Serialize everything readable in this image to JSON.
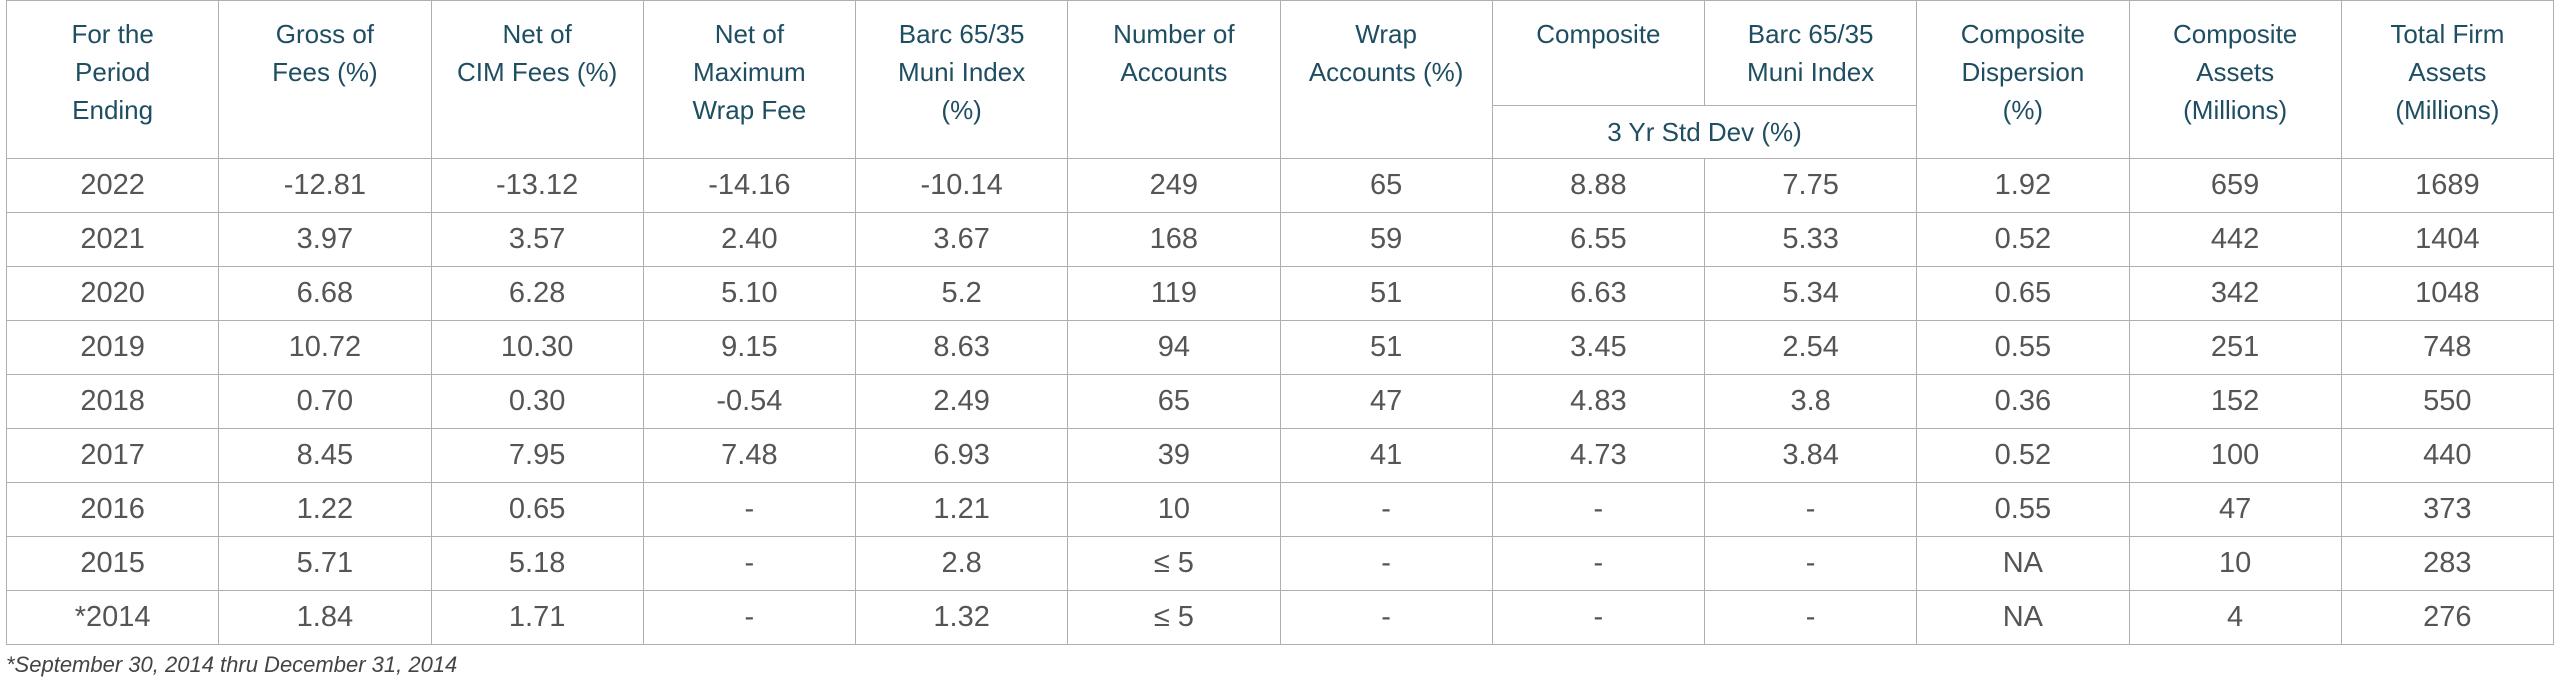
{
  "table": {
    "columns": [
      [
        "For the",
        "Period",
        "Ending"
      ],
      [
        "Gross of",
        "Fees (%)"
      ],
      [
        "Net of",
        "CIM Fees (%)"
      ],
      [
        "Net of",
        "Maximum",
        "Wrap Fee"
      ],
      [
        "Barc 65/35",
        "Muni Index",
        "(%)"
      ],
      [
        "Number of",
        "Accounts"
      ],
      [
        "Wrap",
        "Accounts (%)"
      ],
      [
        "Composite"
      ],
      [
        "Barc 65/35",
        "Muni Index"
      ],
      [
        "Composite",
        "Dispersion",
        "(%)"
      ],
      [
        "Composite",
        "Assets",
        "(Millions)"
      ],
      [
        "Total Firm",
        "Assets",
        "(Millions)"
      ]
    ],
    "subheader": "3 Yr Std Dev (%)",
    "rows": [
      [
        "2022",
        "-12.81",
        "-13.12",
        "-14.16",
        "-10.14",
        "249",
        "65",
        "8.88",
        "7.75",
        "1.92",
        "659",
        "1689"
      ],
      [
        "2021",
        "3.97",
        "3.57",
        "2.40",
        "3.67",
        "168",
        "59",
        "6.55",
        "5.33",
        "0.52",
        "442",
        "1404"
      ],
      [
        "2020",
        "6.68",
        "6.28",
        "5.10",
        "5.2",
        "119",
        "51",
        "6.63",
        "5.34",
        "0.65",
        "342",
        "1048"
      ],
      [
        "2019",
        "10.72",
        "10.30",
        "9.15",
        "8.63",
        "94",
        "51",
        "3.45",
        "2.54",
        "0.55",
        "251",
        "748"
      ],
      [
        "2018",
        "0.70",
        "0.30",
        "-0.54",
        "2.49",
        "65",
        "47",
        "4.83",
        "3.8",
        "0.36",
        "152",
        "550"
      ],
      [
        "2017",
        "8.45",
        "7.95",
        "7.48",
        "6.93",
        "39",
        "41",
        "4.73",
        "3.84",
        "0.52",
        "100",
        "440"
      ],
      [
        "2016",
        "1.22",
        "0.65",
        "-",
        "1.21",
        "10",
        "-",
        "-",
        "-",
        "0.55",
        "47",
        "373"
      ],
      [
        "2015",
        "5.71",
        "5.18",
        "-",
        "2.8",
        "≤ 5",
        "-",
        "-",
        "-",
        "NA",
        "10",
        "283"
      ],
      [
        "*2014",
        "1.84",
        "1.71",
        "-",
        "1.32",
        "≤ 5",
        "-",
        "-",
        "-",
        "NA",
        "4",
        "276"
      ]
    ]
  },
  "footnote": "*September 30, 2014 thru December 31, 2014"
}
